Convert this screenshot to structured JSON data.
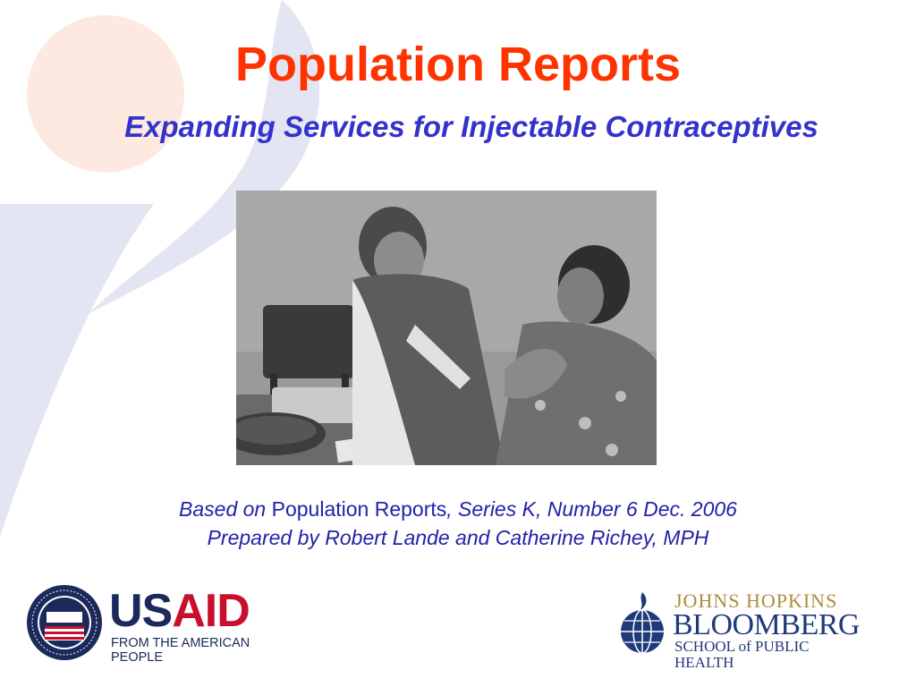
{
  "slide": {
    "title": "Population Reports",
    "subtitle": "Expanding Services for Injectable Contraceptives",
    "citation": {
      "line1_prefix": "Based on",
      "line1_middle": "Population Reports",
      "line1_suffix": ", Series K, Number 6 Dec. 2006",
      "line2": "Prepared by Robert Lande and Catherine Richey, MPH"
    }
  },
  "logos": {
    "usaid": {
      "wordmark": "USAID",
      "tagline": "FROM THE AMERICAN PEOPLE",
      "seal_text": "UNITED STATES AGENCY · INTERNATIONAL DEVELOPMENT",
      "seal_banner": "USAID"
    },
    "jhu": {
      "line1": "JOHNS HOPKINS",
      "line2": "BLOOMBERG",
      "line3": "SCHOOL of PUBLIC HEALTH"
    }
  },
  "colors": {
    "title": "#ff3300",
    "subtitle": "#3333cc",
    "citation": "#2222aa",
    "bg_circle": "#fde9df",
    "bg_swoosh": "#e3e5f2",
    "usaid_blue": "#1b2a5b",
    "usaid_red": "#c8102e",
    "jhu_blue": "#1f3a7a",
    "jhu_gold": "#b08a3c"
  }
}
